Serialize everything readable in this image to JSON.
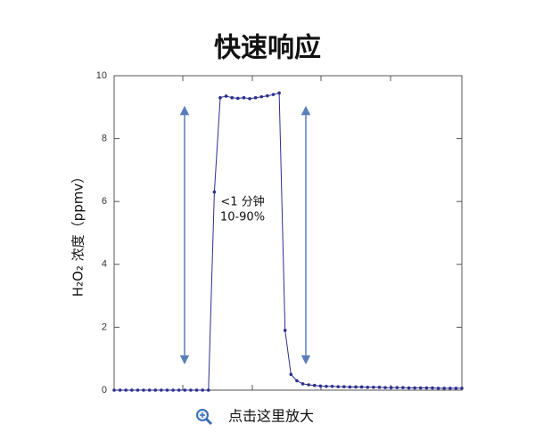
{
  "chart_data": {
    "type": "line",
    "title": "快速响应",
    "ylabel": "H₂O₂ 浓度（ppmv）",
    "annotations": [
      "<1 分钟",
      "10-90%"
    ],
    "footer": "点击这里放大",
    "categories": [
      null,
      null,
      null,
      null,
      null,
      null,
      null,
      null,
      null,
      null,
      null,
      null,
      null,
      null,
      null,
      null,
      null,
      null,
      null,
      null,
      null,
      null,
      null,
      null,
      null,
      null,
      null,
      null,
      null,
      null,
      null,
      null,
      null,
      null,
      null,
      null,
      null,
      null,
      null,
      null,
      null,
      null,
      null,
      null,
      null,
      null,
      null,
      null,
      null,
      null,
      null,
      null,
      null,
      null,
      null,
      null,
      null,
      null,
      null,
      null
    ],
    "series": [
      {
        "name": null,
        "color": "#2a2f8c",
        "values": [
          0,
          0,
          0,
          0,
          0,
          0,
          0,
          0,
          0,
          0,
          0,
          0,
          0,
          0,
          0,
          0,
          0,
          6.3,
          9.3,
          9.35,
          9.3,
          9.28,
          9.3,
          9.27,
          9.3,
          9.33,
          9.36,
          9.4,
          9.45,
          1.9,
          0.5,
          0.3,
          0.2,
          0.17,
          0.15,
          0.13,
          0.12,
          0.12,
          0.11,
          0.11,
          0.1,
          0.1,
          0.1,
          0.09,
          0.09,
          0.09,
          0.08,
          0.08,
          0.08,
          0.08,
          0.07,
          0.07,
          0.07,
          0.07,
          0.07,
          0.06,
          0.06,
          0.06,
          0.06,
          0.06
        ]
      }
    ],
    "ylim": [
      0,
      10
    ],
    "yticks": [
      0,
      2,
      4,
      6,
      8,
      10
    ],
    "grid": false
  }
}
